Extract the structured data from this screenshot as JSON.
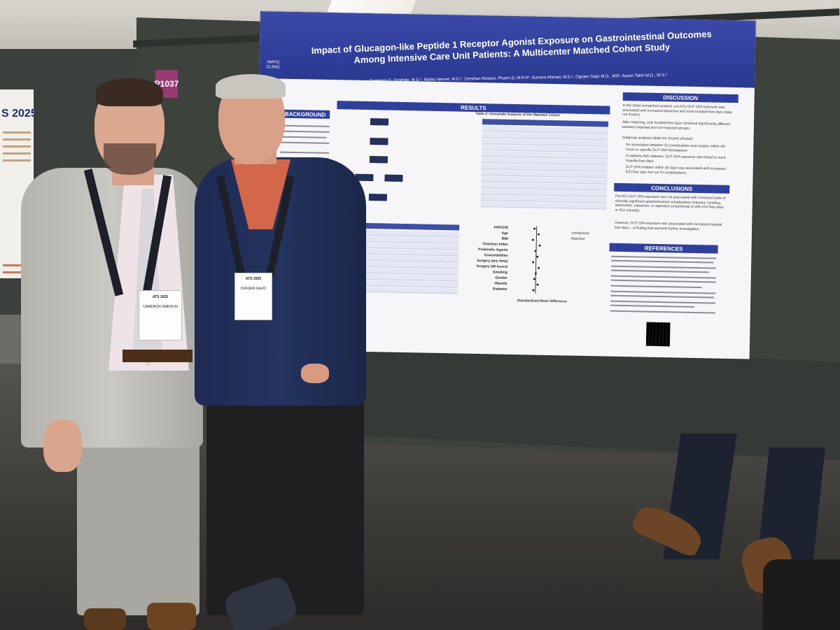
{
  "booth": {
    "number": "P1037"
  },
  "left_poster": {
    "title_fragment": "S 2025"
  },
  "poster": {
    "logo_text": "MAYO CLINIC",
    "title": "Impact of Glucagon-like Peptide 1 Receptor Agonist Exposure on Gastrointestinal Outcomes Among Intensive Care Unit Patients: A Multicenter Matched Cohort Study",
    "authors": "Cameron G. Gmehlin, M.D.¹, Marko Nemet, M.D.², Zeeshan Rizwan, Pharm.D, M.P.H³, Sumera Ahmad, M.D.², Ognjen Gajic M.D., MS², Aysun Tekin M.D., M.S.²",
    "sections": {
      "background": "BACKGROUND",
      "results": "RESULTS",
      "discussion": "DISCUSSION",
      "conclusions": "CONCLUSIONS",
      "references": "REFERENCES"
    },
    "table2_title": "Table 2: Univariate Analysis of the Matched Cohort",
    "forest_labels": [
      "APACHE",
      "Age",
      "BMI",
      "Charlson Index",
      "Prokinetic Agents",
      "Comorbidities",
      "Surgery (any time)",
      "Surgery (48 hours)",
      "Smoking",
      "Gender",
      "Obesity",
      "Diabetes"
    ],
    "forest_legend": [
      "Unmatched",
      "Matched"
    ],
    "forest_xlabel": "Standardized Mean Difference",
    "discussion_bullets": [
      "In the initial unmatched analysis, pre-ICU GLP-1RA exposure was associated with increased impaction and more hospital-free days (data not shown).",
      "After matching, only hospital-free days remained significantly different between exposed and non-exposed groups.",
      "Subgroup analyses (data not shown) showed:",
      "No association between GI complications and surgery within 48-hours or specific GLP-1RA formulations",
      "In patients with diabetes, GLP-1RA exposure was linked to more hospital-free days.",
      "GLP-1RA initiation within 30 days was associated with increased ICU-free days but not GI complications."
    ],
    "conclusion_bullets": [
      "Pre-ICU GLP-1RA exposure was not associated with increased odds of clinically significant gastrointestinal complications (nausea, vomiting, obstruction, impaction, or aspiration pneumonia) or with ICU-free days or ICU mortality.",
      "However, GLP-1RA exposure was associated with increased hospital free days – a finding that warrants further investigation."
    ]
  },
  "badges": {
    "left": {
      "event": "ATS 2025",
      "name": "CAMERON GMEHLIN"
    },
    "right": {
      "event": "ATS 2025",
      "name": "OGNJEN GAJIC"
    }
  },
  "colors": {
    "poster_header": "#2a3a92",
    "board": "#3d423d",
    "booth_tag": "#9a3a74"
  }
}
